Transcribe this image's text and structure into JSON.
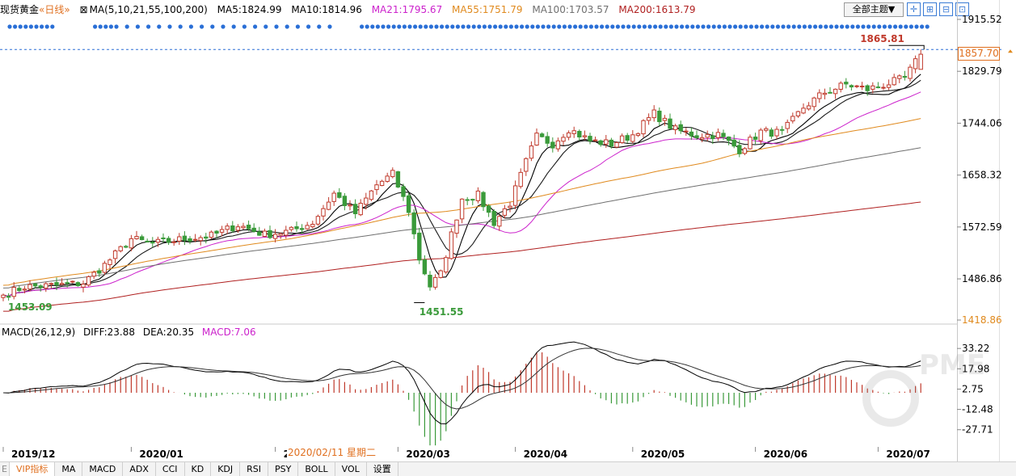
{
  "header": {
    "symbol": "现货黄金",
    "period": "«日线»",
    "ma_def": "MA(5,10,21,55,100,200)",
    "ma5": "MA5:1824.99",
    "ma10": "MA10:1814.96",
    "ma21": "MA21:1795.67",
    "ma55": "MA55:1751.79",
    "ma100": "MA100:1703.57",
    "ma200": "MA200:1613.79"
  },
  "toolbar": {
    "theme_label": "全部主题▼",
    "btn_crosshair": "✛",
    "btn_zoom_in": "⊞",
    "btn_zoom_out": "⊟",
    "btn_fit": "⊡"
  },
  "colors": {
    "up": "#c0392b",
    "down": "#3a9a3a",
    "ma5": "#000000",
    "ma10": "#1a1a1a",
    "ma21": "#cc22cc",
    "ma55": "#e08a1e",
    "ma100": "#707070",
    "ma200": "#b02020",
    "diff": "#000000",
    "dea": "#333333",
    "marker": "#2a6fd6",
    "axis_text": "#000000"
  },
  "annotations": {
    "high_label": "1865.81",
    "current_price": "1857.70",
    "low1_label": "1453.09",
    "low2_label": "1451.55"
  },
  "macd_header": {
    "def": "MACD(26,12,9)",
    "diff": "DIFF:23.88",
    "dea": "DEA:20.35",
    "macd": "MACD:7.06"
  },
  "crosshair_date": "2020/02/11 星期二",
  "bottom_tabs": [
    {
      "label": "E"
    },
    {
      "label": "VIP指标"
    },
    {
      "label": "MA"
    },
    {
      "label": "MACD"
    },
    {
      "label": "ADX"
    },
    {
      "label": "CCI"
    },
    {
      "label": "KD"
    },
    {
      "label": "KDJ"
    },
    {
      "label": "RSI"
    },
    {
      "label": "PSY"
    },
    {
      "label": "BOLL"
    },
    {
      "label": "VOL"
    },
    {
      "label": "设置"
    }
  ],
  "chart_data": {
    "type": "candlestick",
    "title": "现货黄金 «日线»",
    "price_axis": {
      "ticks": [
        1915.52,
        1829.79,
        1744.06,
        1658.32,
        1572.59,
        1486.86,
        1418.86
      ],
      "ylim": [
        1418.86,
        1915.52
      ]
    },
    "macd_axis": {
      "ticks": [
        33.22,
        17.98,
        2.75,
        -12.48,
        -27.71
      ],
      "ylim": [
        -40,
        40
      ]
    },
    "x_labels": [
      "2019/12",
      "2020/01",
      "2020/0",
      "2020/03",
      "2020/04",
      "2020/05",
      "2020/06",
      "2020/07"
    ],
    "x_label_anchor_index": [
      0,
      24,
      51,
      74,
      96,
      118,
      141,
      164
    ],
    "close_waypoints": [
      [
        0,
        1460
      ],
      [
        4,
        1474
      ],
      [
        10,
        1476
      ],
      [
        15,
        1480
      ],
      [
        19,
        1510
      ],
      [
        24,
        1553
      ],
      [
        28,
        1545
      ],
      [
        34,
        1553
      ],
      [
        39,
        1558
      ],
      [
        44,
        1576
      ],
      [
        49,
        1560
      ],
      [
        54,
        1566
      ],
      [
        58,
        1580
      ],
      [
        62,
        1628
      ],
      [
        66,
        1595
      ],
      [
        70,
        1642
      ],
      [
        73,
        1660
      ],
      [
        76,
        1600
      ],
      [
        78,
        1520
      ],
      [
        80,
        1475
      ],
      [
        82,
        1495
      ],
      [
        84,
        1560
      ],
      [
        86,
        1620
      ],
      [
        89,
        1625
      ],
      [
        92,
        1580
      ],
      [
        95,
        1612
      ],
      [
        98,
        1680
      ],
      [
        100,
        1722
      ],
      [
        103,
        1710
      ],
      [
        106,
        1735
      ],
      [
        110,
        1715
      ],
      [
        114,
        1710
      ],
      [
        118,
        1725
      ],
      [
        122,
        1760
      ],
      [
        126,
        1733
      ],
      [
        130,
        1724
      ],
      [
        134,
        1725
      ],
      [
        138,
        1700
      ],
      [
        142,
        1730
      ],
      [
        146,
        1728
      ],
      [
        150,
        1770
      ],
      [
        154,
        1795
      ],
      [
        158,
        1808
      ],
      [
        162,
        1800
      ],
      [
        166,
        1810
      ],
      [
        169,
        1818
      ],
      [
        172,
        1858
      ]
    ],
    "ma_series": [
      {
        "name": "MA5",
        "period": 5,
        "last": 1824.99
      },
      {
        "name": "MA10",
        "period": 10,
        "last": 1814.96
      },
      {
        "name": "MA21",
        "period": 21,
        "last": 1795.67
      },
      {
        "name": "MA55",
        "period": 55,
        "last": 1751.79
      },
      {
        "name": "MA100",
        "period": 100,
        "last": 1703.57
      },
      {
        "name": "MA200",
        "period": 200,
        "last": 1613.79
      }
    ],
    "macd": {
      "diff": 23.88,
      "dea": 20.35,
      "macd": 7.06
    },
    "extremes": [
      {
        "label": "1865.81",
        "value": 1865.81,
        "index": 172
      },
      {
        "label": "1453.09",
        "value": 1453.09,
        "index": 0
      },
      {
        "label": "1451.55",
        "value": 1451.55,
        "index": 79
      }
    ],
    "last_close": 1857.7
  }
}
